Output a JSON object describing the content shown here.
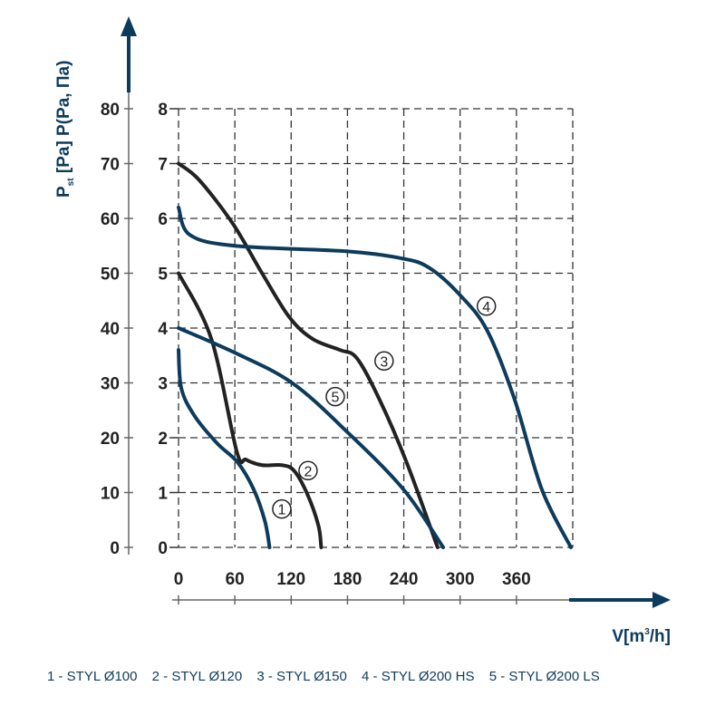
{
  "chart_data": {
    "type": "line",
    "xlabel": "V[m³/h]",
    "ylabel": "Pst [Pa] P(Pa, Па)",
    "ylabel_parts": {
      "main": "P",
      "sub": "st",
      "rest": " [Pa] P(Pa, Па)"
    },
    "xlabel_parts": {
      "main": "V[m",
      "sup": "3",
      "rest": "/h]"
    },
    "xlim": [
      0,
      420
    ],
    "ylim": [
      0,
      80
    ],
    "ylim_secondary": [
      0,
      8
    ],
    "x_ticks": [
      "0",
      "60",
      "120",
      "180",
      "240",
      "300",
      "360"
    ],
    "y_ticks": [
      "0",
      "10",
      "20",
      "30",
      "40",
      "50",
      "60",
      "70",
      "80"
    ],
    "y_ticks_secondary": [
      "0",
      "1",
      "2",
      "3",
      "4",
      "5",
      "6",
      "7",
      "8"
    ],
    "grid": true,
    "colors": {
      "blue": "#0d3b5c",
      "dark": "#222222"
    },
    "series": [
      {
        "name": "1 - STYL Ø100",
        "marker": "1",
        "color": "#0d3b5c",
        "points": [
          [
            0,
            36
          ],
          [
            3,
            29
          ],
          [
            17,
            24
          ],
          [
            41,
            19
          ],
          [
            63,
            15.5
          ],
          [
            80,
            10.6
          ],
          [
            92,
            4.8
          ],
          [
            97,
            0
          ]
        ],
        "marker_at": [
          110,
          7
        ]
      },
      {
        "name": "2 - STYL Ø120",
        "marker": "2",
        "color": "#222222",
        "points": [
          [
            0,
            50
          ],
          [
            35,
            38
          ],
          [
            62,
            17.5
          ],
          [
            72,
            16
          ],
          [
            89,
            15
          ],
          [
            110,
            15
          ],
          [
            123,
            14
          ],
          [
            137,
            9.8
          ],
          [
            149,
            4
          ],
          [
            152,
            0
          ]
        ],
        "marker_at": [
          138,
          14
        ]
      },
      {
        "name": "3 - STYL Ø150",
        "marker": "3",
        "color": "#222222",
        "points": [
          [
            0,
            70
          ],
          [
            22,
            67
          ],
          [
            58,
            59
          ],
          [
            89,
            50
          ],
          [
            118,
            42
          ],
          [
            143,
            38
          ],
          [
            172,
            36
          ],
          [
            190,
            34.5
          ],
          [
            214,
            27
          ],
          [
            243,
            15.5
          ],
          [
            276,
            0
          ]
        ],
        "marker_at": [
          219,
          34
        ]
      },
      {
        "name": "4 - STYL Ø200 HS",
        "marker": "4",
        "color": "#0d3b5c",
        "points": [
          [
            0,
            62
          ],
          [
            12,
            57
          ],
          [
            60,
            55
          ],
          [
            179,
            54
          ],
          [
            238,
            52.7
          ],
          [
            267,
            51
          ],
          [
            300,
            46
          ],
          [
            329,
            39.5
          ],
          [
            358,
            27
          ],
          [
            387,
            10.6
          ],
          [
            418,
            0
          ]
        ],
        "marker_at": [
          328,
          44
        ]
      },
      {
        "name": "5 - STYL Ø200 LS",
        "marker": "5",
        "color": "#0d3b5c",
        "points": [
          [
            0,
            40
          ],
          [
            60,
            35.5
          ],
          [
            121,
            30
          ],
          [
            180,
            21
          ],
          [
            240,
            10.5
          ],
          [
            282,
            0
          ]
        ],
        "marker_at": [
          167,
          27.5
        ]
      }
    ]
  }
}
